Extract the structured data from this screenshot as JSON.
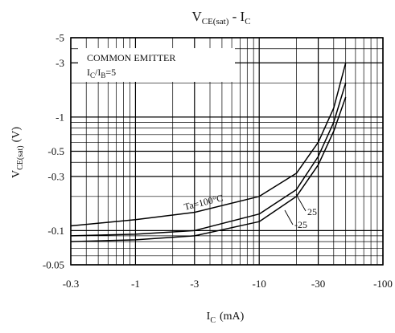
{
  "chart_data": {
    "type": "line",
    "title": {
      "main": "V",
      "main_sub": "CE(sat)",
      "sep": " - I",
      "end_sub": "C"
    },
    "xlabel": {
      "main": "I",
      "sub": "C",
      "unit": "(mA)"
    },
    "ylabel": {
      "main": "V",
      "sub": "CE(sat)",
      "unit": "(V)"
    },
    "x_scale": "log",
    "y_scale": "log",
    "xlim": [
      -0.3,
      -100
    ],
    "ylim": [
      -0.05,
      -5
    ],
    "x_ticks": [
      {
        "value": -0.3,
        "label": "-0.3"
      },
      {
        "value": -1,
        "label": "-1"
      },
      {
        "value": -3,
        "label": "-3"
      },
      {
        "value": -10,
        "label": "-10"
      },
      {
        "value": -30,
        "label": "-30"
      },
      {
        "value": -100,
        "label": "-100"
      }
    ],
    "y_ticks": [
      {
        "value": -0.05,
        "label": "-0.05"
      },
      {
        "value": -0.1,
        "label": "-0.1"
      },
      {
        "value": -0.3,
        "label": "-0.3"
      },
      {
        "value": -0.5,
        "label": "-0.5"
      },
      {
        "value": -1,
        "label": "-1"
      },
      {
        "value": -3,
        "label": "-3"
      },
      {
        "value": -5,
        "label": "-5"
      }
    ],
    "grid": true,
    "annotation": {
      "line1": "COMMON EMITTER",
      "line2_a": "I",
      "line2_a_sub": "C",
      "line2_b": "/I",
      "line2_b_sub": "B",
      "line2_c": "=5"
    },
    "series": [
      {
        "name": "Ta=100°C",
        "x": [
          -0.3,
          -1,
          -3,
          -10,
          -20,
          -30,
          -40,
          -50
        ],
        "y": [
          -0.11,
          -0.125,
          -0.145,
          -0.2,
          -0.32,
          -0.6,
          -1.2,
          -3.0
        ]
      },
      {
        "name": "25",
        "x": [
          -0.3,
          -1,
          -3,
          -10,
          -20,
          -30,
          -40,
          -50
        ],
        "y": [
          -0.09,
          -0.093,
          -0.1,
          -0.14,
          -0.23,
          -0.45,
          -0.9,
          -2.0
        ]
      },
      {
        "name": "-25",
        "x": [
          -0.3,
          -1,
          -3,
          -10,
          -20,
          -30,
          -40,
          -50
        ],
        "y": [
          -0.08,
          -0.083,
          -0.09,
          -0.12,
          -0.2,
          -0.38,
          -0.75,
          -1.5
        ]
      }
    ]
  }
}
